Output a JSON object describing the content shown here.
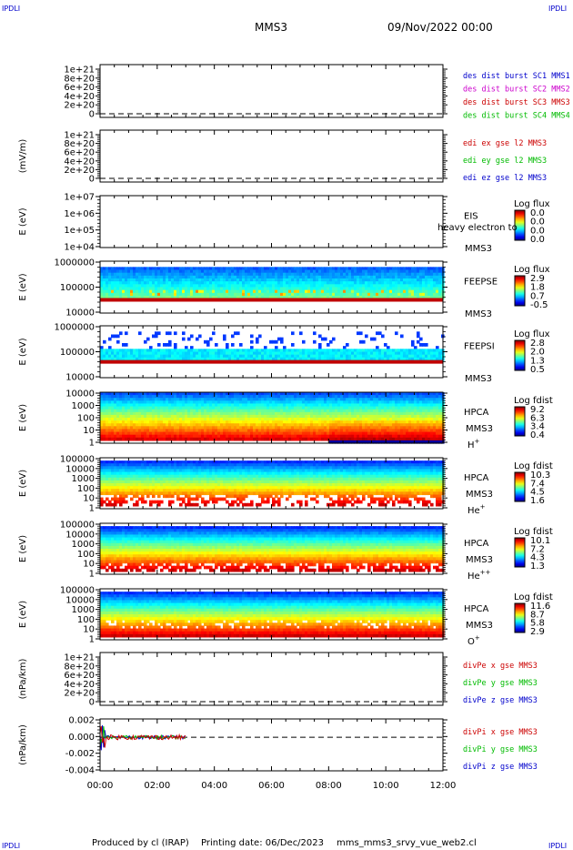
{
  "header": {
    "corner_tl": "IPDLI",
    "corner_tr": "IPDLI",
    "corner_bl": "IPDLI",
    "corner_br": "IPDLI",
    "spacecraft": "MMS3",
    "date": "09/Nov/2022 00:00"
  },
  "footer": {
    "produced": "Produced by cl (IRAP)",
    "printing": "Printing date: 06/Dec/2023",
    "file": "mms_mms3_srvy_vue_web2.cl"
  },
  "time_axis": {
    "labels": [
      "00:00",
      "02:00",
      "04:00",
      "06:00",
      "08:00",
      "10:00",
      "12:00"
    ],
    "range_hours": [
      0,
      12
    ]
  },
  "colors": {
    "red": "#cc0000",
    "magenta": "#cc00cc",
    "green": "#00bb00",
    "blue": "#0000cc",
    "black": "#000000"
  },
  "chart_data": [
    {
      "type": "line",
      "panel": "des-dist",
      "ylabel": "",
      "tick_labels": [
        "1e+21",
        "8e+20",
        "6e+20",
        "4e+20",
        "2e+20",
        "0"
      ],
      "zero_dashed": true,
      "legend": [
        {
          "label": "des dist burst SC1 MMS1",
          "color": "#0000cc"
        },
        {
          "label": "des dist burst SC2 MMS2",
          "color": "#cc00cc"
        },
        {
          "label": "des dist burst SC3 MMS3",
          "color": "#cc0000"
        },
        {
          "label": "des dist burst SC4 MMS4",
          "color": "#00bb00"
        }
      ],
      "series": []
    },
    {
      "type": "line",
      "panel": "edi-e",
      "ylabel": "(mV/m)",
      "tick_labels": [
        "1e+21",
        "8e+20",
        "6e+20",
        "4e+20",
        "2e+20",
        "0"
      ],
      "zero_dashed": true,
      "legend": [
        {
          "label": "edi ex gse l2 MMS3",
          "color": "#cc0000"
        },
        {
          "label": "edi ey gse l2 MMS3",
          "color": "#00bb00"
        },
        {
          "label": "edi ez gse l2 MMS3",
          "color": "#0000cc"
        }
      ],
      "series": []
    },
    {
      "type": "heatmap",
      "panel": "eis",
      "ylabel": "E (eV)",
      "tick_labels": [
        "1e+07",
        "1e+06",
        "1e+05",
        "1e+04"
      ],
      "instrument": "EIS",
      "spacecraft": "MMS3",
      "overlay_text": "heavy electron to",
      "colorbar_title": "Log flux",
      "colorbar_values": [
        "0.0",
        "0.0",
        "0.0",
        "0.0"
      ],
      "style": "empty"
    },
    {
      "type": "heatmap",
      "panel": "feepse",
      "ylabel": "E (eV)",
      "tick_labels": [
        "1000000",
        "100000",
        "10000"
      ],
      "instrument": "FEEPSE",
      "spacecraft": "MMS3",
      "colorbar_title": "Log flux",
      "colorbar_values": [
        "2.9",
        "1.8",
        "0.7",
        "-0.5"
      ],
      "style": "feeps-e",
      "time_coverage_hours": [
        0,
        12
      ]
    },
    {
      "type": "heatmap",
      "panel": "feepsi",
      "ylabel": "E (eV)",
      "tick_labels": [
        "1000000",
        "100000",
        "10000"
      ],
      "instrument": "FEEPSI",
      "spacecraft": "MMS3",
      "colorbar_title": "Log flux",
      "colorbar_values": [
        "2.8",
        "2.0",
        "1.3",
        "0.5"
      ],
      "style": "feeps-i",
      "time_coverage_hours": [
        0,
        12
      ]
    },
    {
      "type": "heatmap",
      "panel": "hpca-h",
      "ylabel": "E (eV)",
      "tick_labels": [
        "10000",
        "1000",
        "100",
        "10",
        "1"
      ],
      "instrument": "HPCA",
      "spacecraft": "MMS3",
      "species": "H",
      "species_sup": "+",
      "colorbar_title": "Log fdist",
      "colorbar_values": [
        "9.2",
        "6.3",
        "3.4",
        "0.4"
      ],
      "style": "hpca-h",
      "time_coverage_hours": [
        0,
        12
      ]
    },
    {
      "type": "heatmap",
      "panel": "hpca-he",
      "ylabel": "E (eV)",
      "tick_labels": [
        "100000",
        "10000",
        "1000",
        "100",
        "10",
        "1"
      ],
      "instrument": "HPCA",
      "spacecraft": "MMS3",
      "species": "He",
      "species_sup": "+",
      "colorbar_title": "Log fdist",
      "colorbar_values": [
        "10.3",
        "7.4",
        "4.5",
        "1.6"
      ],
      "style": "hpca-he",
      "time_coverage_hours": [
        0,
        12
      ]
    },
    {
      "type": "heatmap",
      "panel": "hpca-hepp",
      "ylabel": "E (eV)",
      "tick_labels": [
        "100000",
        "10000",
        "1000",
        "100",
        "10",
        "1"
      ],
      "instrument": "HPCA",
      "spacecraft": "MMS3",
      "species": "He",
      "species_sup": "++",
      "colorbar_title": "Log fdist",
      "colorbar_values": [
        "10.1",
        "7.2",
        "4.3",
        "1.3"
      ],
      "style": "hpca-hepp",
      "time_coverage_hours": [
        0,
        12
      ]
    },
    {
      "type": "heatmap",
      "panel": "hpca-o",
      "ylabel": "E (eV)",
      "tick_labels": [
        "100000",
        "10000",
        "1000",
        "100",
        "10",
        "1"
      ],
      "instrument": "HPCA",
      "spacecraft": "MMS3",
      "species": "O",
      "species_sup": "+",
      "colorbar_title": "Log fdist",
      "colorbar_values": [
        "11.6",
        "8.7",
        "5.8",
        "2.9"
      ],
      "style": "hpca-o",
      "time_coverage_hours": [
        0,
        12
      ]
    },
    {
      "type": "line",
      "panel": "divpe",
      "ylabel": "(nPa/km)",
      "tick_labels": [
        "1e+21",
        "8e+20",
        "6e+20",
        "4e+20",
        "2e+20",
        "0"
      ],
      "zero_dashed": true,
      "legend": [
        {
          "label": "divPe x gse MMS3",
          "color": "#cc0000"
        },
        {
          "label": "divPe y gse MMS3",
          "color": "#00bb00"
        },
        {
          "label": "divPe z gse MMS3",
          "color": "#0000cc"
        }
      ],
      "series": []
    },
    {
      "type": "line",
      "panel": "divpi",
      "ylabel": "(nPa/km)",
      "tick_labels": [
        "0.002",
        "0.000",
        "-0.002",
        "-0.004"
      ],
      "ylim": [
        -0.0055,
        0.003
      ],
      "zero_dashed": true,
      "legend": [
        {
          "label": "divPi x gse MMS3",
          "color": "#cc0000"
        },
        {
          "label": "divPi y gse MMS3",
          "color": "#00bb00"
        },
        {
          "label": "divPi z gse MMS3",
          "color": "#0000cc"
        }
      ],
      "time_coverage_hours": [
        0,
        3.0
      ],
      "series": [
        {
          "name": "divPi x gse MMS3",
          "color": "#cc0000",
          "amplitude": 0.0004
        },
        {
          "name": "divPi y gse MMS3",
          "color": "#00bb00",
          "amplitude": 0.0003
        },
        {
          "name": "divPi z gse MMS3",
          "color": "#0000cc",
          "amplitude": 0.0003
        }
      ]
    }
  ]
}
